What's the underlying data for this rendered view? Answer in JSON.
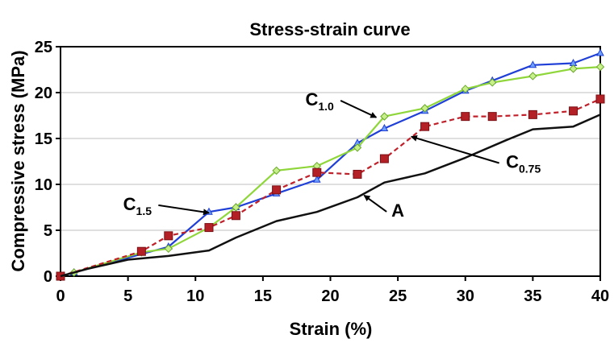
{
  "chart_data": {
    "type": "line",
    "title": "Stress-strain curve",
    "xlabel": "Strain (%)",
    "ylabel": "Compressive stress (MPa)",
    "xlim": [
      0,
      40
    ],
    "ylim": [
      0,
      25
    ],
    "xticks": [
      0,
      5,
      10,
      15,
      20,
      25,
      30,
      35,
      40
    ],
    "yticks": [
      0,
      5,
      10,
      15,
      20,
      25
    ],
    "grid": "horizontal",
    "series": [
      {
        "name": "C1.0",
        "color": "#1f3fd6",
        "marker": "triangle",
        "dash": "solid",
        "x": [
          0,
          1,
          8,
          11,
          13,
          16,
          19,
          22,
          24,
          27,
          30,
          32,
          35,
          38,
          40
        ],
        "y": [
          0,
          0.4,
          3.2,
          7.0,
          7.5,
          9.0,
          10.5,
          14.5,
          16.1,
          18.0,
          20.2,
          21.3,
          23.0,
          23.2,
          24.3
        ]
      },
      {
        "name": "C1.5",
        "color": "#8fd63a",
        "marker": "diamond",
        "dash": "solid",
        "x": [
          0,
          1,
          6,
          8,
          11,
          13,
          16,
          19,
          22,
          24,
          27,
          30,
          32,
          35,
          38,
          40
        ],
        "y": [
          0,
          0.4,
          2.6,
          3.0,
          5.3,
          7.5,
          11.5,
          12.0,
          14.0,
          17.4,
          18.3,
          20.4,
          21.1,
          21.8,
          22.6,
          22.8
        ]
      },
      {
        "name": "C0.75",
        "color": "#c0202a",
        "marker": "square",
        "dash": "dashed",
        "x": [
          0,
          6,
          8,
          11,
          13,
          16,
          19,
          22,
          24,
          27,
          30,
          32,
          35,
          38,
          40
        ],
        "y": [
          0,
          2.7,
          4.4,
          5.3,
          6.6,
          9.4,
          11.3,
          11.1,
          12.8,
          16.3,
          17.4,
          17.4,
          17.6,
          18.0,
          19.3
        ]
      },
      {
        "name": "A",
        "color": "#111111",
        "marker": "none",
        "dash": "solid",
        "x": [
          0,
          2,
          5,
          8,
          11,
          13,
          16,
          19,
          22,
          24,
          27,
          30,
          33,
          35,
          38,
          40
        ],
        "y": [
          0,
          0.8,
          1.8,
          2.2,
          2.8,
          4.2,
          6.0,
          7.0,
          8.6,
          10.2,
          11.2,
          12.9,
          14.8,
          16.0,
          16.3,
          17.6
        ]
      }
    ],
    "annotations": [
      {
        "label": "C",
        "sub": "1.0",
        "x": 23.4,
        "y": 17.3,
        "text_x": 19.2,
        "text_y": 18.6
      },
      {
        "label": "C",
        "sub": "1.5",
        "x": 11.0,
        "y": 6.9,
        "text_x": 5.7,
        "text_y": 7.2
      },
      {
        "label": "C",
        "sub": "0.75",
        "x": 26.0,
        "y": 15.2,
        "text_x": 34.3,
        "text_y": 11.8
      },
      {
        "label": "A",
        "x": 22.5,
        "y": 8.8,
        "text_x": 25.0,
        "text_y": 6.5
      }
    ]
  }
}
